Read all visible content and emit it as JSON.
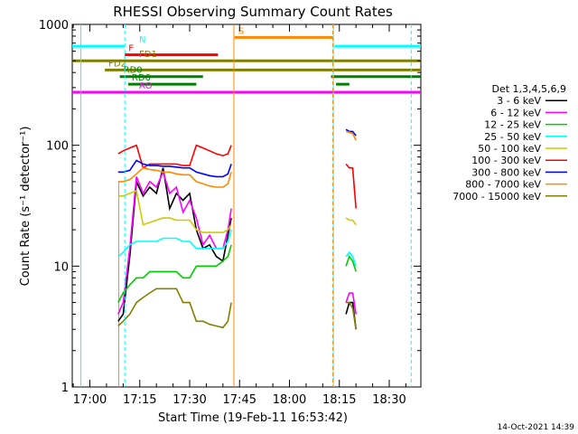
{
  "chart_data": {
    "type": "line",
    "title": "RHESSI Observing Summary Count Rates",
    "xlabel": "Start Time (19-Feb-11 16:53:42)",
    "ylabel": "Count Rate (s⁻¹ detector⁻¹)",
    "yscale": "log",
    "ylim": [
      1,
      1000
    ],
    "xlim_minutes": [
      -5.3,
      99.5
    ],
    "x_ticks": [
      {
        "label": "17:00",
        "min": 0
      },
      {
        "label": "17:15",
        "min": 15
      },
      {
        "label": "17:30",
        "min": 30
      },
      {
        "label": "17:45",
        "min": 45
      },
      {
        "label": "18:00",
        "min": 60
      },
      {
        "label": "18:15",
        "min": 75
      },
      {
        "label": "18:30",
        "min": 90
      }
    ],
    "y_ticks": [
      {
        "label": "1",
        "v": 1
      },
      {
        "label": "10",
        "v": 10
      },
      {
        "label": "100",
        "v": 100
      },
      {
        "label": "1000",
        "v": 1000
      }
    ],
    "legend_title": "Det 1,3,4,5,6,9",
    "legend_placement": "right",
    "series": [
      {
        "name": "3 - 6 keV",
        "color": "#000000",
        "x": [
          8.5,
          10,
          12,
          14,
          16,
          18,
          20,
          22,
          24,
          26,
          28,
          30,
          32,
          34,
          36,
          38,
          40,
          41.5,
          42.5,
          77,
          78,
          79,
          80
        ],
        "y": [
          3.5,
          4,
          12,
          50,
          38,
          45,
          40,
          65,
          30,
          40,
          35,
          40,
          20,
          14,
          15,
          12,
          11,
          18,
          25,
          4,
          5,
          5,
          3
        ]
      },
      {
        "name": "6 - 12 keV",
        "color": "#ff00ff",
        "x": [
          8.5,
          10,
          12,
          14,
          16,
          18,
          20,
          22,
          24,
          26,
          28,
          30,
          32,
          34,
          36,
          38,
          40,
          41.5,
          42.5,
          77,
          78,
          79,
          80
        ],
        "y": [
          4,
          5,
          14,
          55,
          40,
          50,
          45,
          60,
          40,
          45,
          28,
          35,
          25,
          15,
          18,
          14,
          14,
          20,
          30,
          5,
          6,
          6,
          4
        ]
      },
      {
        "name": "12 - 25 keV",
        "color": "#00cc00",
        "x": [
          8.5,
          10,
          12,
          14,
          16,
          18,
          20,
          22,
          24,
          26,
          28,
          30,
          32,
          34,
          36,
          38,
          40,
          41.5,
          42.5,
          77,
          78,
          79,
          80
        ],
        "y": [
          5,
          6,
          7,
          8,
          8,
          9,
          9,
          9,
          9,
          9,
          8,
          8,
          10,
          10,
          10,
          10,
          11,
          12,
          15,
          10,
          12,
          11,
          9
        ]
      },
      {
        "name": "25 - 50 keV",
        "color": "#00ffff",
        "x": [
          8.5,
          10,
          12,
          14,
          16,
          18,
          20,
          22,
          24,
          26,
          28,
          30,
          32,
          34,
          36,
          38,
          40,
          41.5,
          42.5,
          77,
          78,
          79,
          80
        ],
        "y": [
          12,
          13,
          15,
          16,
          16,
          16,
          16,
          17,
          17,
          17,
          16,
          16,
          14,
          14,
          14,
          14,
          14,
          16,
          20,
          12,
          13,
          12,
          10
        ]
      },
      {
        "name": "50 - 100 keV",
        "color": "#cccc00",
        "x": [
          8.5,
          10,
          12,
          14,
          16,
          18,
          20,
          22,
          24,
          26,
          28,
          30,
          32,
          34,
          36,
          38,
          40,
          41.5,
          42.5,
          77,
          78,
          79,
          80
        ],
        "y": [
          38,
          38,
          40,
          42,
          22,
          23,
          24,
          25,
          25,
          24,
          24,
          24,
          20,
          19,
          19,
          19,
          19,
          20,
          22,
          25,
          24,
          24,
          22
        ]
      },
      {
        "name": "100 - 300 keV",
        "color": "#ff0000",
        "x": [
          8.5,
          10,
          12,
          14,
          16,
          18,
          20,
          22,
          24,
          26,
          28,
          30,
          32,
          34,
          36,
          38,
          40,
          41.5,
          42.5,
          77,
          78,
          79,
          80
        ],
        "y": [
          85,
          90,
          95,
          100,
          65,
          70,
          70,
          70,
          70,
          70,
          68,
          68,
          100,
          95,
          90,
          85,
          82,
          85,
          100,
          70,
          65,
          65,
          30
        ]
      },
      {
        "name": "300 - 800 keV",
        "color": "#0000ff",
        "x": [
          8.5,
          10,
          12,
          14,
          16,
          18,
          20,
          22,
          24,
          26,
          28,
          30,
          32,
          34,
          36,
          38,
          40,
          41.5,
          42.5,
          77,
          78,
          79,
          80
        ],
        "y": [
          60,
          60,
          62,
          75,
          70,
          68,
          68,
          67,
          67,
          66,
          65,
          65,
          60,
          58,
          56,
          55,
          55,
          58,
          70,
          135,
          130,
          130,
          120
        ]
      },
      {
        "name": "800 - 7000 keV",
        "color": "#ff8800",
        "x": [
          8.5,
          10,
          12,
          14,
          16,
          18,
          20,
          22,
          24,
          26,
          28,
          30,
          32,
          34,
          36,
          38,
          40,
          41.5,
          42.5,
          77,
          78,
          79,
          80
        ],
        "y": [
          50,
          50,
          52,
          58,
          65,
          63,
          62,
          60,
          60,
          58,
          57,
          57,
          50,
          48,
          46,
          45,
          45,
          48,
          60,
          130,
          128,
          125,
          110
        ]
      },
      {
        "name": "7000 - 15000 keV",
        "color": "#808000",
        "x": [
          8.5,
          10,
          12,
          14,
          16,
          18,
          20,
          22,
          24,
          26,
          28,
          30,
          32,
          34,
          36,
          38,
          40,
          41.5,
          42.5,
          77,
          78,
          79,
          80
        ],
        "y": [
          3.2,
          3.5,
          4,
          5,
          5.5,
          6,
          6.5,
          6.5,
          6.5,
          6.5,
          5,
          5,
          3.5,
          3.5,
          3.3,
          3.2,
          3.1,
          3.5,
          5,
          5,
          5,
          4.5,
          3
        ]
      }
    ],
    "flag_bars": [
      {
        "label": "N",
        "color": "#00ffff",
        "level": 660,
        "segments": [
          [
            -5.3,
            10.5
          ],
          [
            73.5,
            99.5
          ]
        ]
      },
      {
        "label": "F",
        "color": "#ff0000",
        "level": 560,
        "segments": [
          [
            10.5,
            38.5
          ]
        ]
      },
      {
        "label": "FD1",
        "color": "#808000",
        "level": 500,
        "segments": [
          [
            -5.3,
            99.5
          ]
        ]
      },
      {
        "label": "FD2",
        "color": "#808000",
        "level": 420,
        "segments": [
          [
            4.5,
            99.5
          ]
        ]
      },
      {
        "label": "RD0",
        "color": "#008000",
        "level": 370,
        "segments": [
          [
            9,
            34
          ],
          [
            72.5,
            99.5
          ]
        ]
      },
      {
        "label": "RD6",
        "color": "#008000",
        "level": 320,
        "segments": [
          [
            11.5,
            32
          ],
          [
            74,
            78
          ]
        ]
      },
      {
        "label": "AO",
        "color": "#ff00ff",
        "level": 275,
        "segments": [
          [
            -5.3,
            99.5
          ]
        ]
      },
      {
        "label": "S",
        "color": "#ff8800",
        "level": 780,
        "segments": [
          [
            43.5,
            73
          ]
        ]
      }
    ],
    "vertical_markers": [
      {
        "color": "#00ffff",
        "min": -2.7,
        "style": "solid"
      },
      {
        "color": "#00ffff",
        "min": 10.5,
        "style": "dashed"
      },
      {
        "color": "#00ffff",
        "min": 73.2,
        "style": "solid"
      },
      {
        "color": "#ff8800",
        "min": 43.3,
        "style": "solid"
      },
      {
        "color": "#ff8800",
        "min": 73.0,
        "style": "dashed"
      },
      {
        "color": "#00ffff",
        "min": 96.6,
        "style": "dashed"
      }
    ],
    "orange_onset_spike": {
      "min": 8.7
    },
    "corner_timestamp": "14-Oct-2021 14:39"
  }
}
